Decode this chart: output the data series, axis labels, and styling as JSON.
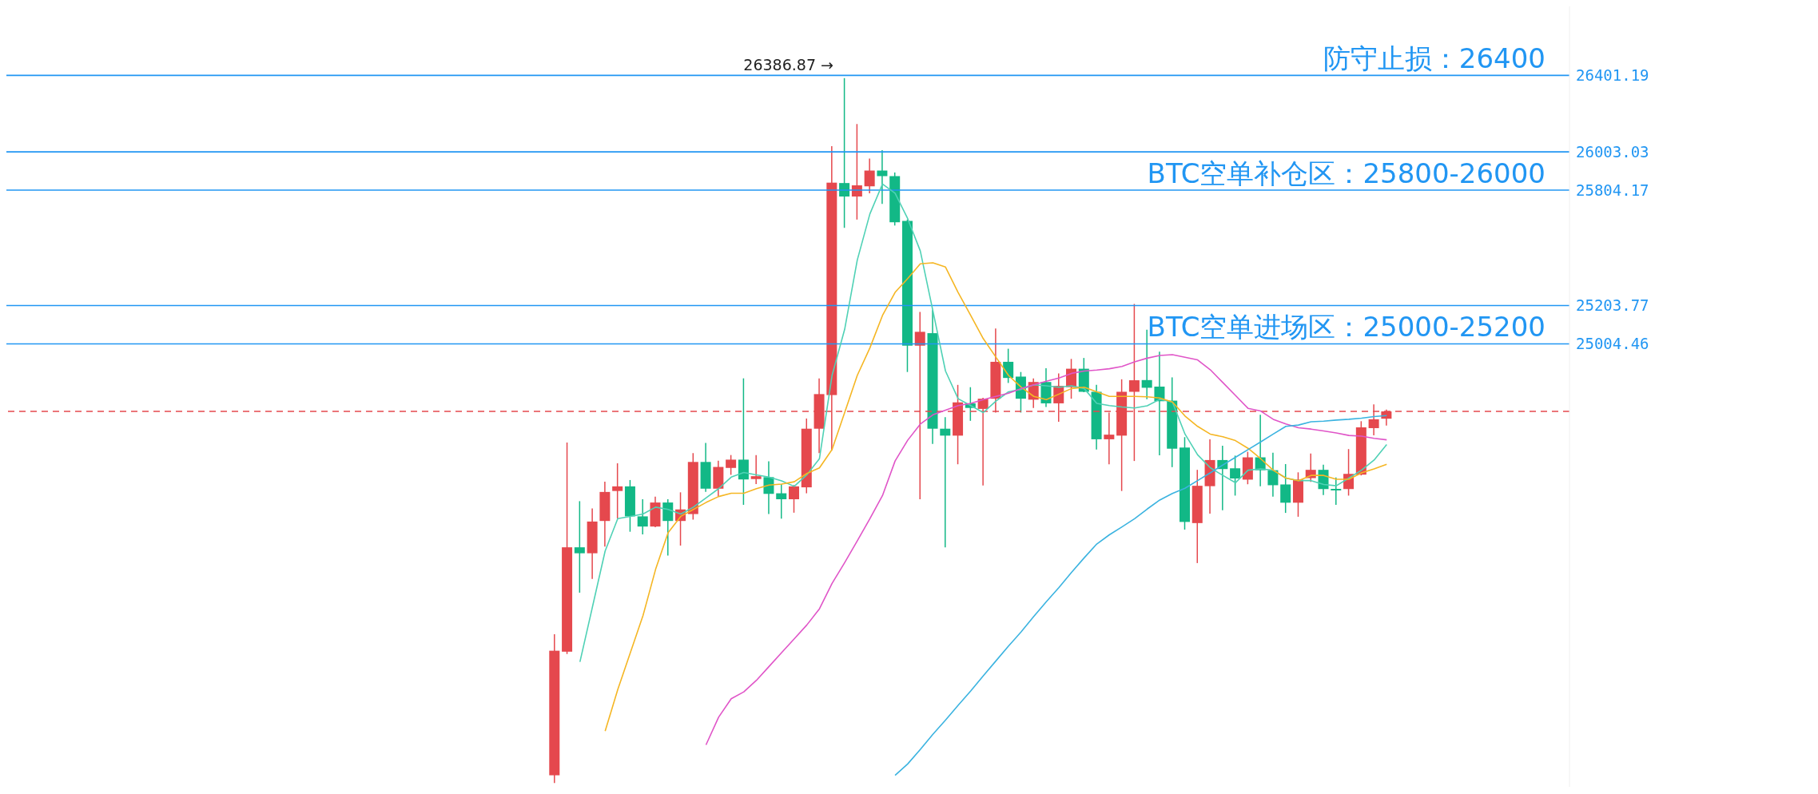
{
  "chart_data": {
    "type": "candlestick",
    "categories": [
      null,
      null,
      null,
      null,
      null,
      null,
      null,
      null,
      null,
      null,
      null,
      null,
      null,
      null,
      null,
      null,
      null,
      null,
      null,
      null,
      null,
      null,
      null,
      null,
      null,
      null,
      null,
      null,
      null,
      null,
      null,
      null,
      null,
      null,
      null,
      null,
      null,
      null,
      null,
      null,
      null,
      null,
      null,
      null,
      null,
      null,
      null,
      null,
      null,
      null,
      null,
      null,
      null,
      null,
      null,
      null,
      null,
      null,
      null,
      null,
      null,
      null,
      null,
      null,
      null,
      null,
      null,
      null,
      null,
      null,
      null,
      null,
      null,
      null,
      null,
      null,
      null,
      null,
      null,
      null,
      null,
      null,
      null,
      null,
      null,
      null,
      null,
      null,
      null,
      null,
      null,
      null,
      null,
      null,
      null,
      null,
      null,
      null,
      null,
      null,
      null,
      null,
      null,
      null,
      null,
      null,
      null,
      null,
      null,
      null,
      null,
      null,
      null,
      null,
      null,
      null,
      null,
      null,
      null,
      null,
      null,
      null,
      null,
      null
    ],
    "ohlc": [
      null,
      null,
      null,
      null,
      null,
      null,
      null,
      null,
      null,
      null,
      null,
      null,
      null,
      null,
      null,
      null,
      null,
      null,
      null,
      null,
      null,
      null,
      null,
      null,
      null,
      null,
      null,
      null,
      null,
      null,
      null,
      null,
      null,
      null,
      null,
      null,
      null,
      null,
      null,
      null,
      null,
      null,
      null,
      [
        22760,
        23494,
        22720,
        23408
      ],
      [
        23403,
        24491,
        23391,
        23946
      ],
      [
        23946,
        24186,
        23710,
        23915
      ],
      [
        23915,
        24148,
        23782,
        24080
      ],
      [
        24083,
        24287,
        23950,
        24234
      ],
      [
        24239,
        24383,
        24095,
        24263
      ],
      [
        24263,
        24296,
        24027,
        24107
      ],
      [
        24107,
        24196,
        24013,
        24054
      ],
      [
        24054,
        24210,
        24051,
        24179
      ],
      [
        24179,
        24196,
        23903,
        24083
      ],
      [
        24083,
        24232,
        23955,
        24143
      ],
      [
        24119,
        24436,
        24090,
        24390
      ],
      [
        24390,
        24489,
        24234,
        24251
      ],
      [
        24251,
        24397,
        24210,
        24364
      ],
      [
        24359,
        24426,
        24323,
        24402
      ],
      [
        24402,
        24825,
        24167,
        24299
      ],
      [
        24301,
        24426,
        24275,
        24316
      ],
      [
        24311,
        24393,
        24119,
        24224
      ],
      [
        24227,
        24275,
        24095,
        24196
      ],
      [
        24196,
        24270,
        24126,
        24263
      ],
      [
        24258,
        24616,
        24227,
        24563
      ],
      [
        24563,
        24825,
        24436,
        24743
      ],
      [
        24738,
        26033,
        24450,
        25843
      ],
      [
        25841,
        26386.87,
        25608,
        25771
      ],
      [
        25771,
        26148,
        25651,
        25829
      ],
      [
        25824,
        25968,
        25788,
        25906
      ],
      [
        25906,
        26012,
        25733,
        25877
      ],
      [
        25877,
        25896,
        25620,
        25637
      ],
      [
        25644,
        25651,
        24858,
        24995
      ],
      [
        24995,
        25171,
        24196,
        25067
      ],
      [
        25060,
        25180,
        24484,
        24563
      ],
      [
        24563,
        24623,
        23946,
        24527
      ],
      [
        24527,
        24791,
        24378,
        24700
      ],
      [
        24695,
        24779,
        24604,
        24671
      ],
      [
        24666,
        24724,
        24268,
        24719
      ],
      [
        24719,
        25084,
        24647,
        24911
      ],
      [
        24911,
        24979,
        24801,
        24827
      ],
      [
        24834,
        24858,
        24647,
        24719
      ],
      [
        24714,
        24825,
        24671,
        24806
      ],
      [
        24806,
        24878,
        24676,
        24695
      ],
      [
        24695,
        24851,
        24599,
        24786
      ],
      [
        24779,
        24926,
        24719,
        24875
      ],
      [
        24875,
        24931,
        24753,
        24755
      ],
      [
        24755,
        24791,
        24455,
        24508
      ],
      [
        24508,
        24647,
        24378,
        24532
      ],
      [
        24527,
        24820,
        24239,
        24755
      ],
      [
        24755,
        25212,
        24395,
        24815
      ],
      [
        24816,
        25078,
        24716,
        24776
      ],
      [
        24782,
        24964,
        24425,
        24706
      ],
      [
        24709,
        24830,
        24363,
        24459
      ],
      [
        24465,
        24519,
        24038,
        24078
      ],
      [
        24072,
        24349,
        23864,
        24266
      ],
      [
        24264,
        24508,
        24121,
        24400
      ],
      [
        24400,
        24474,
        24139,
        24353
      ],
      [
        24357,
        24423,
        24215,
        24304
      ],
      [
        24298,
        24443,
        24274,
        24414
      ],
      [
        24414,
        24635,
        24264,
        24347
      ],
      [
        24347,
        24438,
        24210,
        24269
      ],
      [
        24273,
        24379,
        24125,
        24178
      ],
      [
        24178,
        24336,
        24105,
        24298
      ],
      [
        24306,
        24434,
        24286,
        24349
      ],
      [
        24349,
        24376,
        24218,
        24249
      ],
      [
        24250,
        24309,
        24167,
        24242
      ],
      [
        24249,
        24457,
        24215,
        24328
      ],
      [
        24324,
        24602,
        24320,
        24570
      ],
      [
        24566,
        24689,
        24528,
        24612
      ],
      [
        24615,
        24662,
        24579,
        24653
      ],
      null,
      null,
      null,
      null,
      null,
      null,
      null,
      null,
      null,
      null,
      null,
      null,
      null,
      null
    ],
    "colors": [
      null,
      null,
      null,
      null,
      null,
      null,
      null,
      null,
      null,
      null,
      null,
      null,
      null,
      null,
      null,
      null,
      null,
      null,
      null,
      null,
      null,
      null,
      null,
      null,
      null,
      null,
      null,
      null,
      null,
      null,
      null,
      null,
      null,
      null,
      null,
      null,
      null,
      null,
      null,
      null,
      null,
      null,
      null,
      "#e5484d",
      "#e5484d",
      "#12b886",
      "#e5484d",
      "#e5484d",
      "#e5484d",
      "#12b886",
      "#12b886",
      "#e5484d",
      "#12b886",
      "#e5484d",
      "#e5484d",
      "#12b886",
      "#e5484d",
      "#e5484d",
      "#12b886",
      "#e5484d",
      "#12b886",
      "#12b886",
      "#e5484d",
      "#e5484d",
      "#e5484d",
      "#e5484d",
      "#12b886",
      "#e5484d",
      "#e5484d",
      "#12b886",
      "#12b886",
      "#12b886",
      "#e5484d",
      "#12b886",
      "#12b886",
      "#e5484d",
      "#12b886",
      "#e5484d",
      "#e5484d",
      "#12b886",
      "#12b886",
      "#e5484d",
      "#12b886",
      "#e5484d",
      "#e5484d",
      "#12b886",
      "#12b886",
      "#e5484d",
      "#e5484d",
      "#e5484d",
      "#12b886",
      "#12b886",
      "#12b886",
      "#12b886",
      "#e5484d",
      "#e5484d",
      "#12b886",
      "#12b886",
      "#e5484d",
      "#12b886",
      "#12b886",
      "#12b886",
      "#e5484d",
      "#e5484d",
      "#12b886",
      "#12b886",
      "#e5484d",
      "#e5484d",
      "#e5484d",
      "#e5484d",
      null,
      null,
      null,
      null,
      null,
      null,
      null,
      null,
      null,
      null,
      null,
      null,
      null,
      null
    ],
    "series": [
      {
        "type": "line",
        "color": "#4fd1b5",
        "values": [
          null,
          null,
          null,
          null,
          null,
          null,
          null,
          null,
          null,
          null,
          null,
          null,
          null,
          null,
          null,
          null,
          null,
          null,
          null,
          null,
          null,
          null,
          null,
          null,
          null,
          null,
          null,
          null,
          null,
          null,
          null,
          null,
          null,
          null,
          null,
          null,
          null,
          null,
          null,
          null,
          null,
          null,
          null,
          null,
          null,
          23350,
          23638,
          23927,
          24095,
          24107,
          24119,
          24155,
          24143,
          24119,
          24155,
          24203,
          24251,
          24311,
          24335,
          24323,
          24311,
          24292,
          24263,
          24323,
          24407,
          24840,
          25080,
          25440,
          25680,
          25836,
          25788,
          25656,
          25488,
          25176,
          24863,
          24719,
          24683,
          24647,
          24707,
          24755,
          24767,
          24791,
          24786,
          24779,
          24786,
          24772,
          24695,
          24683,
          24676,
          24671,
          24682,
          24716,
          24702,
          24535,
          24427,
          24360,
          24320,
          24282,
          24347,
          24354,
          24347,
          24306,
          24293,
          24293,
          24273,
          24266,
          24306,
          24347,
          24400,
          24481,
          null,
          null,
          null,
          null,
          null,
          null,
          null,
          null,
          null,
          null,
          null,
          null,
          null,
          null
        ]
      },
      {
        "type": "line",
        "color": "#f5b623",
        "values": [
          null,
          null,
          null,
          null,
          null,
          null,
          null,
          null,
          null,
          null,
          null,
          null,
          null,
          null,
          null,
          null,
          null,
          null,
          null,
          null,
          null,
          null,
          null,
          null,
          null,
          null,
          null,
          null,
          null,
          null,
          null,
          null,
          null,
          null,
          null,
          null,
          null,
          null,
          null,
          null,
          null,
          null,
          null,
          null,
          null,
          null,
          null,
          22990,
          23206,
          23398,
          23590,
          23831,
          24023,
          24107,
          24143,
          24179,
          24210,
          24227,
          24227,
          24251,
          24270,
          24275,
          24287,
          24330,
          24359,
          24455,
          24647,
          24840,
          24983,
          25152,
          25272,
          25344,
          25421,
          25426,
          25404,
          25272,
          25152,
          25031,
          24935,
          24840,
          24779,
          24731,
          24714,
          24743,
          24772,
          24779,
          24755,
          24731,
          24731,
          24731,
          24729,
          24723,
          24702,
          24629,
          24575,
          24535,
          24521,
          24501,
          24461,
          24407,
          24347,
          24306,
          24293,
          24320,
          24320,
          24300,
          24300,
          24333,
          24354,
          24378,
          null,
          null,
          null,
          null,
          null,
          null,
          null,
          null,
          null,
          null,
          null,
          null,
          null,
          null
        ]
      },
      {
        "type": "line",
        "color": "#e055c8",
        "values": [
          null,
          null,
          null,
          null,
          null,
          null,
          null,
          null,
          null,
          null,
          null,
          null,
          null,
          null,
          null,
          null,
          null,
          null,
          null,
          null,
          null,
          null,
          null,
          null,
          null,
          null,
          null,
          null,
          null,
          null,
          null,
          null,
          null,
          null,
          null,
          null,
          null,
          null,
          null,
          null,
          null,
          null,
          null,
          null,
          null,
          null,
          null,
          null,
          null,
          null,
          null,
          null,
          null,
          null,
          null,
          22918,
          23062,
          23158,
          23194,
          23254,
          23326,
          23398,
          23470,
          23542,
          23626,
          23758,
          23866,
          23979,
          24095,
          24215,
          24395,
          24503,
          24587,
          24635,
          24659,
          24683,
          24695,
          24714,
          24731,
          24748,
          24772,
          24791,
          24810,
          24827,
          24851,
          24863,
          24868,
          24875,
          24887,
          24911,
          24930,
          24944,
          24948,
          24935,
          24921,
          24870,
          24803,
          24736,
          24669,
          24655,
          24612,
          24588,
          24568,
          24561,
          24551,
          24541,
          24528,
          24524,
          24513,
          24505,
          null,
          null,
          null,
          null,
          null,
          null,
          null,
          null,
          null,
          null,
          null,
          null,
          null,
          null
        ]
      },
      {
        "type": "line",
        "color": "#3bb3e0",
        "values": [
          null,
          null,
          null,
          null,
          null,
          null,
          null,
          null,
          null,
          null,
          null,
          null,
          null,
          null,
          null,
          null,
          null,
          null,
          null,
          null,
          null,
          null,
          null,
          null,
          null,
          null,
          null,
          null,
          null,
          null,
          null,
          null,
          null,
          null,
          null,
          null,
          null,
          null,
          null,
          null,
          null,
          null,
          null,
          null,
          null,
          null,
          null,
          null,
          null,
          null,
          null,
          null,
          null,
          null,
          null,
          null,
          null,
          null,
          null,
          null,
          null,
          null,
          null,
          null,
          null,
          null,
          null,
          null,
          null,
          null,
          22760,
          22819,
          22894,
          22973,
          23047,
          23124,
          23199,
          23278,
          23355,
          23432,
          23506,
          23586,
          23663,
          23737,
          23816,
          23891,
          23963,
          24011,
          24052,
          24095,
          24145,
          24192,
          24226,
          24253,
          24293,
          24333,
          24374,
          24414,
          24454,
          24494,
          24535,
          24575,
          24582,
          24599,
          24602,
          24608,
          24612,
          24618,
          24626,
          24631,
          null,
          null,
          null,
          null,
          null,
          null,
          null,
          null,
          null,
          null,
          null,
          null,
          null,
          null
        ]
      }
    ],
    "ylim": [
      22700,
      26760
    ],
    "yticks": [
      25004.46,
      25203.77,
      25804.17,
      26003.03,
      26401.19
    ],
    "tick_labels": "y",
    "ref_lines": [
      {
        "axis": "y",
        "value": 26401.19,
        "label": "防守止损：26400",
        "color": "#2196f3"
      },
      {
        "axis": "y",
        "value": 26003.03,
        "color": "#2196f3"
      },
      {
        "axis": "y",
        "value": 25804.17,
        "label": "BTC空单补仓区：25800-26000",
        "color": "#2196f3"
      },
      {
        "axis": "y",
        "value": 25203.77,
        "color": "#2196f3"
      },
      {
        "axis": "y",
        "value": 25004.46,
        "label": "BTC空单进场区：25000-25200",
        "color": "#2196f3"
      },
      {
        "axis": "y",
        "value": 24653,
        "color": "#e5484d",
        "line_style": "dashed"
      }
    ],
    "annotations": [
      {
        "text": "26386.87 →",
        "y": 26386.87
      }
    ]
  }
}
